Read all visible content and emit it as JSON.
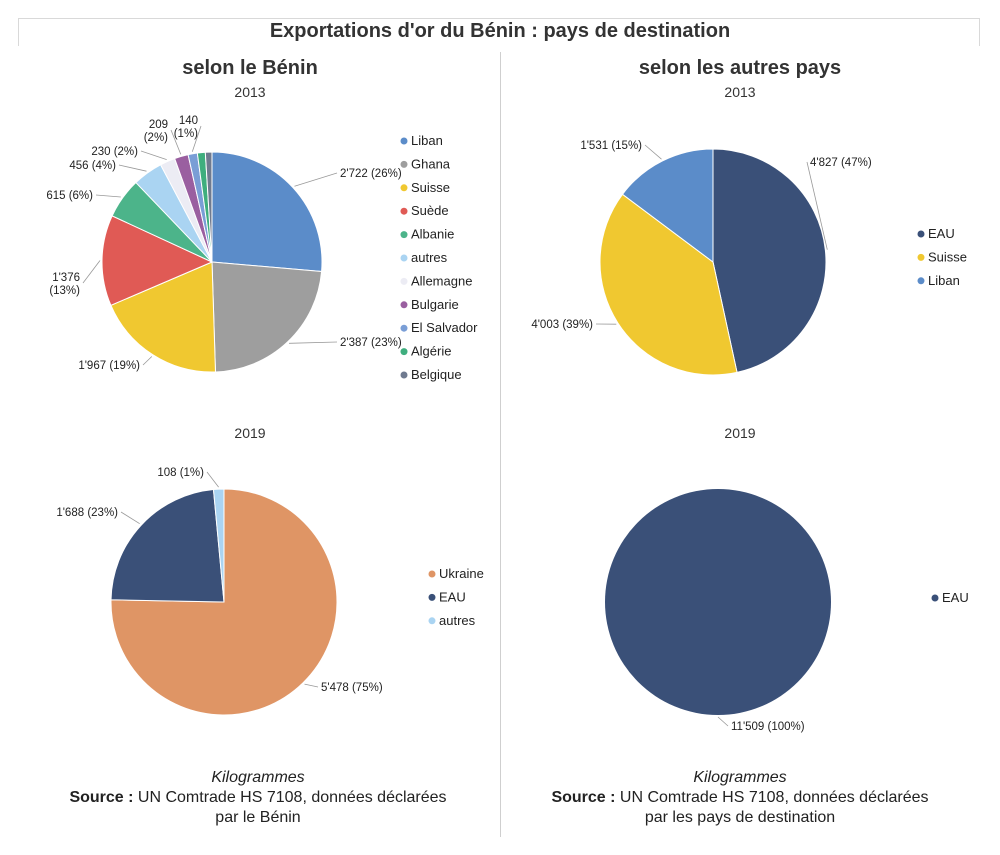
{
  "page": {
    "title": "Exportations d'or du Bénin : pays de destination"
  },
  "left": {
    "heading": "selon le Bénin",
    "unit": "Kilogrammes",
    "source_label": "Source :",
    "source_text": "UN Comtrade HS 7108, données déclarées",
    "source_line2": "par le Bénin"
  },
  "right": {
    "heading": "selon les autres pays",
    "unit": "Kilogrammes",
    "source_label": "Source :",
    "source_text": "UN Comtrade HS 7108, données déclarées",
    "source_line2": "par les pays de destination"
  },
  "chart_data": [
    {
      "type": "pie",
      "panel": "selon le Bénin",
      "year": "2013",
      "slices": [
        {
          "name": "Liban",
          "value": 2722,
          "label": "2'722 (26%)",
          "color": "#5b8cc9"
        },
        {
          "name": "Ghana",
          "value": 2387,
          "label": "2'387 (23%)",
          "color": "#9e9e9e"
        },
        {
          "name": "Suisse",
          "value": 1967,
          "label": "1'967 (19%)",
          "color": "#f0c830"
        },
        {
          "name": "Suède",
          "value": 1376,
          "label": "1'376 (13%)",
          "color": "#e05a55"
        },
        {
          "name": "Albanie",
          "value": 615,
          "label": "615 (6%)",
          "color": "#4cb48a"
        },
        {
          "name": "autres",
          "value": 456,
          "label": "456 (4%)",
          "color": "#aad4f2"
        },
        {
          "name": "Allemagne",
          "value": 230,
          "label": "230 (2%)",
          "color": "#ececf4"
        },
        {
          "name": "Bulgarie",
          "value": 209,
          "label": "209 (2%)",
          "color": "#9a5fa0"
        },
        {
          "name": "El Salvador",
          "value": 140,
          "label": "140 (1%)",
          "color": "#7a9ed6"
        },
        {
          "name": "Algérie",
          "value": 120,
          "label": "",
          "color": "#3fae7e"
        },
        {
          "name": "Belgique",
          "value": 100,
          "label": "",
          "color": "#6f7a8f"
        }
      ]
    },
    {
      "type": "pie",
      "panel": "selon les autres pays",
      "year": "2013",
      "slices": [
        {
          "name": "EAU",
          "value": 4827,
          "label": "4'827 (47%)",
          "color": "#3a5078"
        },
        {
          "name": "Suisse",
          "value": 4003,
          "label": "4'003 (39%)",
          "color": "#f0c830"
        },
        {
          "name": "Liban",
          "value": 1531,
          "label": "1'531 (15%)",
          "color": "#5b8cc9"
        }
      ]
    },
    {
      "type": "pie",
      "panel": "selon le Bénin",
      "year": "2019",
      "slices": [
        {
          "name": "Ukraine",
          "value": 5478,
          "label": "5'478 (75%)",
          "color": "#df9565"
        },
        {
          "name": "EAU",
          "value": 1688,
          "label": "1'688 (23%)",
          "color": "#3a5078"
        },
        {
          "name": "autres",
          "value": 108,
          "label": "108 (1%)",
          "color": "#aad4f2"
        }
      ]
    },
    {
      "type": "pie",
      "panel": "selon les autres pays",
      "year": "2019",
      "slices": [
        {
          "name": "EAU",
          "value": 11509,
          "label": "11'509 (100%)",
          "color": "#3a5078"
        }
      ]
    }
  ]
}
